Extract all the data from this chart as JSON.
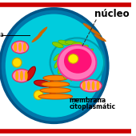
{
  "bg_color": "#ffffff",
  "top_border_color": "#cc0000",
  "bottom_border_color": "#cc0000",
  "cell_outer_fc": "#0077aa",
  "cell_outer_ec": "#005588",
  "cell_inner_fc": "#00ccdd",
  "cell_inner_ec": "none",
  "nucleus_halo_fc": "#00bbcc",
  "nucleus_halo_ec": "#009aaa",
  "nucleus_body_fc": "#ff77bb",
  "nucleus_body_ec": "#ee3399",
  "nucleus_core_fc": "#ff1177",
  "nucleus_core_ec": "none",
  "nucleolus_fc": "#ffee00",
  "nucleolus_ec": "#ccaa00",
  "chloroplast_fc": "#88cc00",
  "chloroplast_ec": "#55aa00",
  "mito_fc": "#ff88bb",
  "mito_ec": "#dd3366",
  "mito_inner_fc": "#ffaa00",
  "golgi_fc": "#ff8800",
  "golgi_ec": "#cc5500",
  "red_rod_fc": "#cc1111",
  "red_rod_ec": "#990000",
  "orange_needle_fc": "#cc6600",
  "yellow_orb_fc": "#ffdd00",
  "yellow_orb_ec": "#ccaa00",
  "label_nucleo": "núcleo",
  "label_membrana_line1": "membrana",
  "label_membrana_line2": "citoplasmátic",
  "label_left_line": "a"
}
